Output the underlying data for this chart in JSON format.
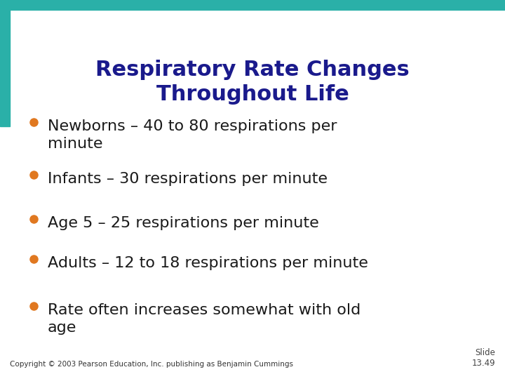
{
  "title_line1": "Respiratory Rate Changes",
  "title_line2": "Throughout Life",
  "title_color": "#1a1a8c",
  "title_fontsize": 22,
  "bullet_color": "#e07820",
  "bullet_text_color": "#1a1a1a",
  "bullet_fontsize": 16,
  "background_color": "#ffffff",
  "teal_color": "#2ab0a8",
  "bullets": [
    "Newborns – 40 to 80 respirations per\nminute",
    "Infants – 30 respirations per minute",
    "Age 5 – 25 respirations per minute",
    "Adults – 12 to 18 respirations per minute",
    "Rate often increases somewhat with old\nage"
  ],
  "footer_left": "Copyright © 2003 Pearson Education, Inc. publishing as Benjamin Cummings",
  "footer_right": "Slide\n13.49",
  "footer_fontsize": 7.5
}
